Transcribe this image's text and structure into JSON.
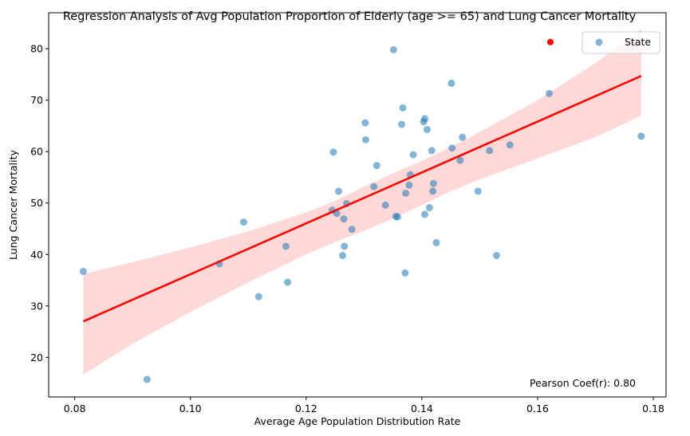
{
  "chart_data": {
    "type": "scatter",
    "title": "Regression Analysis of Avg Population Proportion of Elderly (age >= 65) and Lung Cancer Mortality",
    "xlabel": "Average Age Population Distribution Rate",
    "ylabel": "Lung Cancer Mortality",
    "xlim": [
      0.0755,
      0.1822
    ],
    "ylim": [
      12.3,
      87.0
    ],
    "xticks": [
      0.08,
      0.1,
      0.12,
      0.14,
      0.16,
      0.18
    ],
    "xtick_labels": [
      "0.08",
      "0.10",
      "0.12",
      "0.14",
      "0.16",
      "0.18"
    ],
    "yticks": [
      20,
      30,
      40,
      50,
      60,
      70,
      80
    ],
    "ytick_labels": [
      "20",
      "30",
      "40",
      "50",
      "60",
      "70",
      "80"
    ],
    "grid": false,
    "legend": {
      "position": "top-right",
      "entries": [
        {
          "label": "State",
          "color": "#1f77b4"
        }
      ]
    },
    "annotation": "Pearson Coef(r): 0.80",
    "series": [
      {
        "name": "State",
        "kind": "scatter",
        "color": "#1f77b4",
        "alpha": 0.55,
        "points": [
          [
            0.0815,
            36.7
          ],
          [
            0.0925,
            15.7
          ],
          [
            0.105,
            38.2
          ],
          [
            0.1092,
            46.3
          ],
          [
            0.1118,
            31.8
          ],
          [
            0.1165,
            41.6
          ],
          [
            0.1168,
            34.6
          ],
          [
            0.1245,
            48.6
          ],
          [
            0.1247,
            59.9
          ],
          [
            0.1253,
            48.0
          ],
          [
            0.1256,
            52.3
          ],
          [
            0.1263,
            39.8
          ],
          [
            0.1265,
            46.9
          ],
          [
            0.1266,
            41.6
          ],
          [
            0.127,
            49.9
          ],
          [
            0.1279,
            44.9
          ],
          [
            0.1302,
            65.6
          ],
          [
            0.1303,
            62.3
          ],
          [
            0.1317,
            53.2
          ],
          [
            0.1322,
            57.3
          ],
          [
            0.1337,
            49.6
          ],
          [
            0.1351,
            79.8
          ],
          [
            0.1355,
            47.4
          ],
          [
            0.1358,
            47.3
          ],
          [
            0.1365,
            65.3
          ],
          [
            0.1367,
            68.5
          ],
          [
            0.1371,
            36.4
          ],
          [
            0.1372,
            51.9
          ],
          [
            0.1378,
            53.5
          ],
          [
            0.138,
            55.5
          ],
          [
            0.1385,
            59.4
          ],
          [
            0.1403,
            65.8
          ],
          [
            0.1405,
            66.4
          ],
          [
            0.1405,
            47.8
          ],
          [
            0.1409,
            64.3
          ],
          [
            0.1413,
            49.1
          ],
          [
            0.1417,
            60.2
          ],
          [
            0.1419,
            52.3
          ],
          [
            0.142,
            53.8
          ],
          [
            0.1425,
            42.3
          ],
          [
            0.1451,
            73.3
          ],
          [
            0.1452,
            60.7
          ],
          [
            0.1466,
            58.3
          ],
          [
            0.147,
            62.8
          ],
          [
            0.1497,
            52.3
          ],
          [
            0.1517,
            60.2
          ],
          [
            0.1529,
            39.8
          ],
          [
            0.1552,
            61.3
          ],
          [
            0.162,
            71.3
          ],
          [
            0.1779,
            63.0
          ]
        ]
      },
      {
        "name": "",
        "kind": "highlight",
        "color": "#ff0000",
        "points": [
          [
            0.1622,
            81.3
          ]
        ]
      },
      {
        "name": "",
        "kind": "regression",
        "color": "#ff0000",
        "line": [
          [
            0.0815,
            27.0
          ],
          [
            0.1779,
            74.7
          ]
        ],
        "ci_upper": [
          [
            0.0815,
            36.2
          ],
          [
            0.09,
            38.5
          ],
          [
            0.1,
            41.4
          ],
          [
            0.11,
            44.5
          ],
          [
            0.12,
            48.2
          ],
          [
            0.125,
            50.4
          ],
          [
            0.13,
            53.2
          ],
          [
            0.135,
            55.8
          ],
          [
            0.14,
            58.2
          ],
          [
            0.145,
            60.9
          ],
          [
            0.15,
            63.8
          ],
          [
            0.16,
            70.0
          ],
          [
            0.17,
            77.2
          ],
          [
            0.1779,
            83.8
          ]
        ],
        "ci_lower": [
          [
            0.0815,
            16.7
          ],
          [
            0.09,
            22.6
          ],
          [
            0.1,
            28.8
          ],
          [
            0.11,
            34.6
          ],
          [
            0.12,
            40.0
          ],
          [
            0.125,
            42.4
          ],
          [
            0.13,
            44.6
          ],
          [
            0.135,
            47.0
          ],
          [
            0.14,
            49.6
          ],
          [
            0.145,
            52.3
          ],
          [
            0.15,
            54.6
          ],
          [
            0.16,
            58.7
          ],
          [
            0.17,
            62.8
          ],
          [
            0.1779,
            67.0
          ]
        ],
        "ci_color": "#ff9999"
      }
    ]
  }
}
